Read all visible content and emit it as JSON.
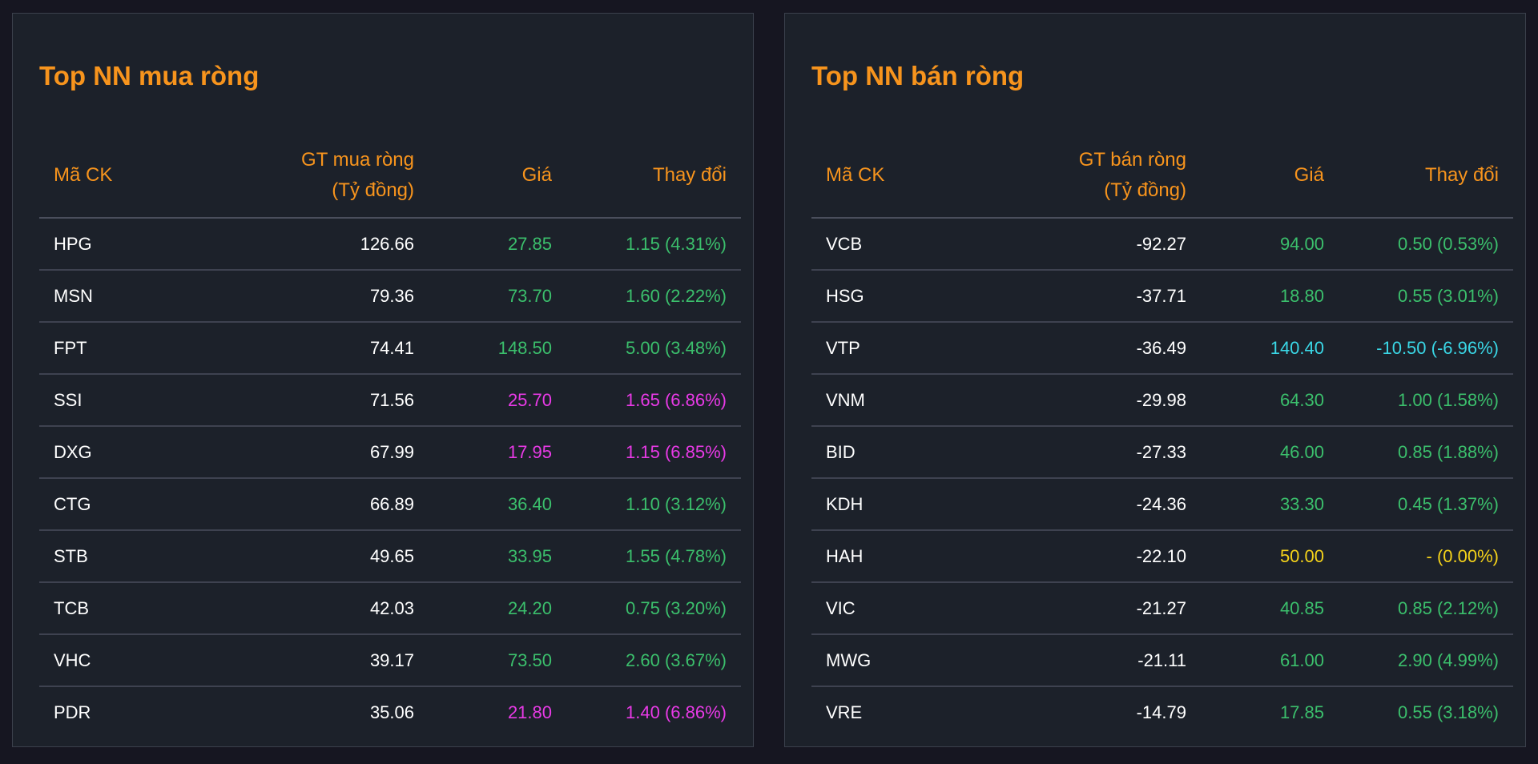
{
  "colors": {
    "up": "#3bbf6c",
    "ceiling": "#e83ae6",
    "floor": "#3ad7e6",
    "reference": "#f5d31a",
    "accent": "#f7941d"
  },
  "buy": {
    "title": "Top NN mua ròng",
    "headers": {
      "symbol": "Mã CK",
      "value_line1": "GT mua ròng",
      "value_line2": "(Tỷ đồng)",
      "price": "Giá",
      "change": "Thay đổi"
    },
    "rows": [
      {
        "symbol": "HPG",
        "value": "126.66",
        "price": "27.85",
        "change": "1.15 (4.31%)",
        "status": "up"
      },
      {
        "symbol": "MSN",
        "value": "79.36",
        "price": "73.70",
        "change": "1.60 (2.22%)",
        "status": "up"
      },
      {
        "symbol": "FPT",
        "value": "74.41",
        "price": "148.50",
        "change": "5.00 (3.48%)",
        "status": "up"
      },
      {
        "symbol": "SSI",
        "value": "71.56",
        "price": "25.70",
        "change": "1.65 (6.86%)",
        "status": "ceil"
      },
      {
        "symbol": "DXG",
        "value": "67.99",
        "price": "17.95",
        "change": "1.15 (6.85%)",
        "status": "ceil"
      },
      {
        "symbol": "CTG",
        "value": "66.89",
        "price": "36.40",
        "change": "1.10 (3.12%)",
        "status": "up"
      },
      {
        "symbol": "STB",
        "value": "49.65",
        "price": "33.95",
        "change": "1.55 (4.78%)",
        "status": "up"
      },
      {
        "symbol": "TCB",
        "value": "42.03",
        "price": "24.20",
        "change": "0.75 (3.20%)",
        "status": "up"
      },
      {
        "symbol": "VHC",
        "value": "39.17",
        "price": "73.50",
        "change": "2.60 (3.67%)",
        "status": "up"
      },
      {
        "symbol": "PDR",
        "value": "35.06",
        "price": "21.80",
        "change": "1.40 (6.86%)",
        "status": "ceil"
      }
    ]
  },
  "sell": {
    "title": "Top NN bán ròng",
    "headers": {
      "symbol": "Mã CK",
      "value_line1": "GT bán ròng",
      "value_line2": "(Tỷ đồng)",
      "price": "Giá",
      "change": "Thay đổi"
    },
    "rows": [
      {
        "symbol": "VCB",
        "value": "-92.27",
        "price": "94.00",
        "change": "0.50 (0.53%)",
        "status": "up"
      },
      {
        "symbol": "HSG",
        "value": "-37.71",
        "price": "18.80",
        "change": "0.55 (3.01%)",
        "status": "up"
      },
      {
        "symbol": "VTP",
        "value": "-36.49",
        "price": "140.40",
        "change": "-10.50 (-6.96%)",
        "status": "floor"
      },
      {
        "symbol": "VNM",
        "value": "-29.98",
        "price": "64.30",
        "change": "1.00 (1.58%)",
        "status": "up"
      },
      {
        "symbol": "BID",
        "value": "-27.33",
        "price": "46.00",
        "change": "0.85 (1.88%)",
        "status": "up"
      },
      {
        "symbol": "KDH",
        "value": "-24.36",
        "price": "33.30",
        "change": "0.45 (1.37%)",
        "status": "up"
      },
      {
        "symbol": "HAH",
        "value": "-22.10",
        "price": "50.00",
        "change": "- (0.00%)",
        "status": "ref"
      },
      {
        "symbol": "VIC",
        "value": "-21.27",
        "price": "40.85",
        "change": "0.85 (2.12%)",
        "status": "up"
      },
      {
        "symbol": "MWG",
        "value": "-21.11",
        "price": "61.00",
        "change": "2.90 (4.99%)",
        "status": "up"
      },
      {
        "symbol": "VRE",
        "value": "-14.79",
        "price": "17.85",
        "change": "0.55 (3.18%)",
        "status": "up"
      }
    ]
  }
}
